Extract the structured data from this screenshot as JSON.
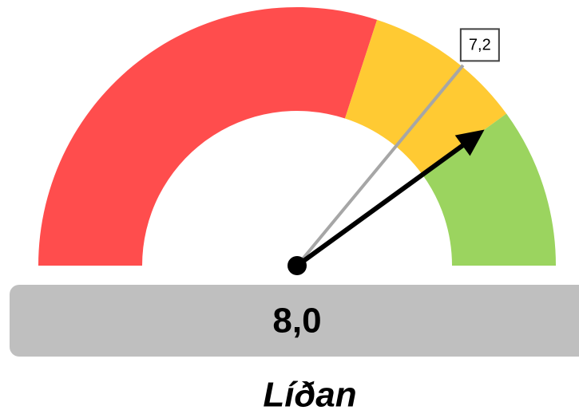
{
  "chart_data": {
    "type": "gauge",
    "title": "Líðan",
    "ylim": [
      0,
      10
    ],
    "bands": [
      {
        "color": "#ff4d4d",
        "values": [
          0,
          6
        ]
      },
      {
        "color": "#ffca33",
        "values": [
          6,
          8
        ]
      },
      {
        "color": "#9bd45f",
        "values": [
          8,
          10
        ]
      }
    ],
    "value": 8,
    "value_label": "8,0",
    "needle_color": "#000000",
    "target": 7.2,
    "target_label": "7,2",
    "target_color": "#a6a6a6"
  }
}
